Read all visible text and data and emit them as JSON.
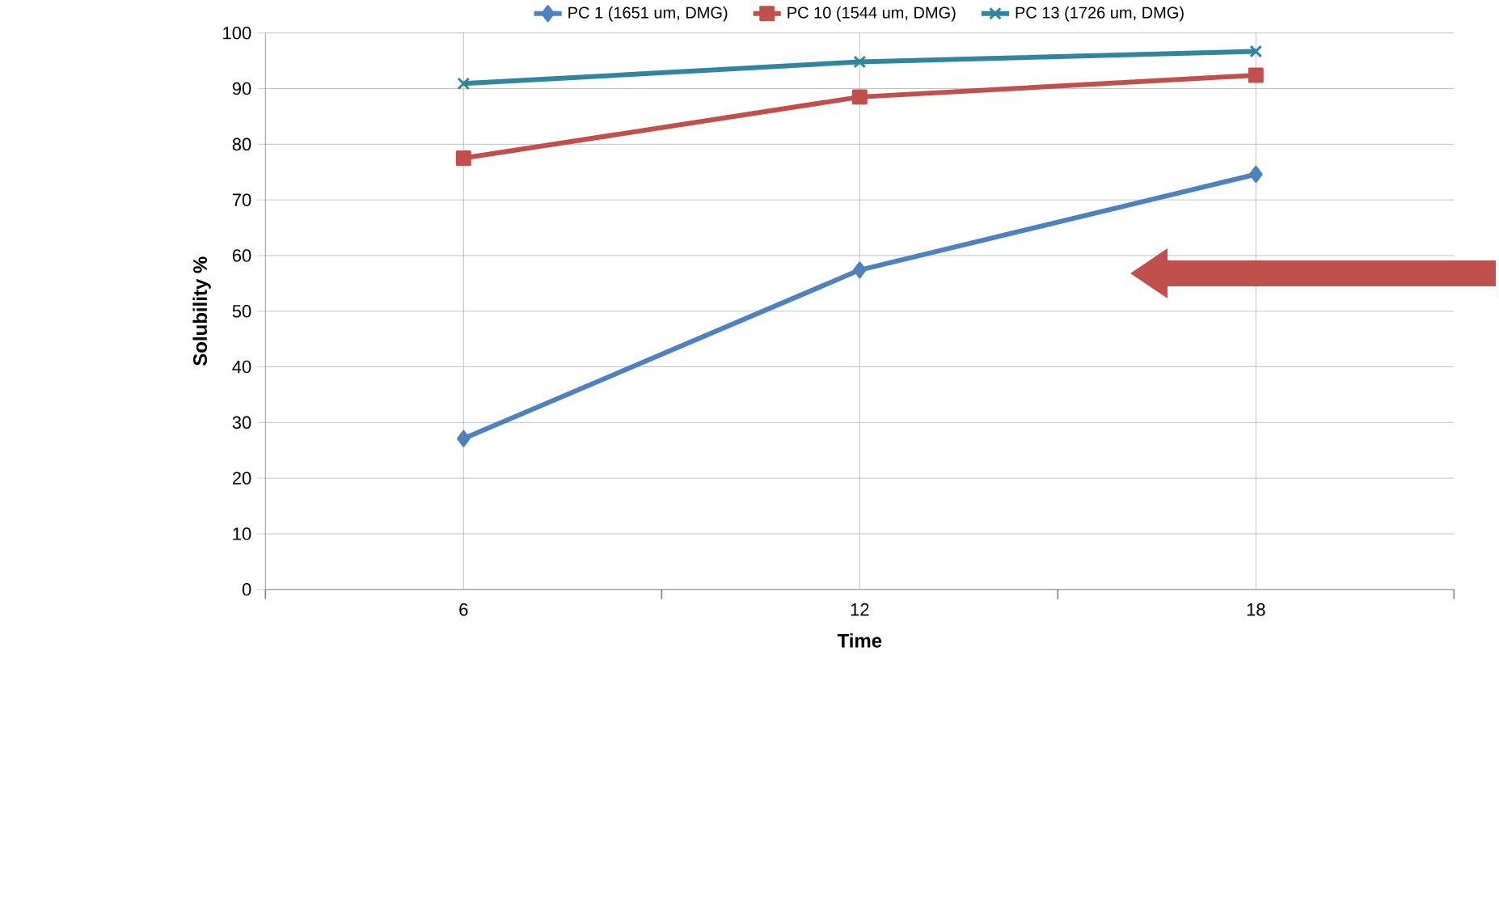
{
  "chart_data": {
    "type": "line",
    "xlabel": "Time",
    "ylabel": "Solubility %",
    "categories": [
      "6",
      "12",
      "18"
    ],
    "series": [
      {
        "name": "PC 1 (1651 um, DMG)",
        "color": "#4f81bd",
        "marker": "diamond",
        "values": [
          27.1,
          57.4,
          74.6
        ]
      },
      {
        "name": "PC 10 (1544 um, DMG)",
        "color": "#c0504d",
        "marker": "square",
        "values": [
          77.5,
          88.5,
          92.4
        ]
      },
      {
        "name": "PC 13 (1726 um, DMG)",
        "color": "#31859c",
        "marker": "cross",
        "values": [
          90.9,
          94.8,
          96.7
        ]
      }
    ],
    "ylim": [
      0,
      100
    ],
    "yticks": [
      0,
      10,
      20,
      30,
      40,
      50,
      60,
      70,
      80,
      90,
      100
    ],
    "grid": true,
    "legend": "top"
  }
}
